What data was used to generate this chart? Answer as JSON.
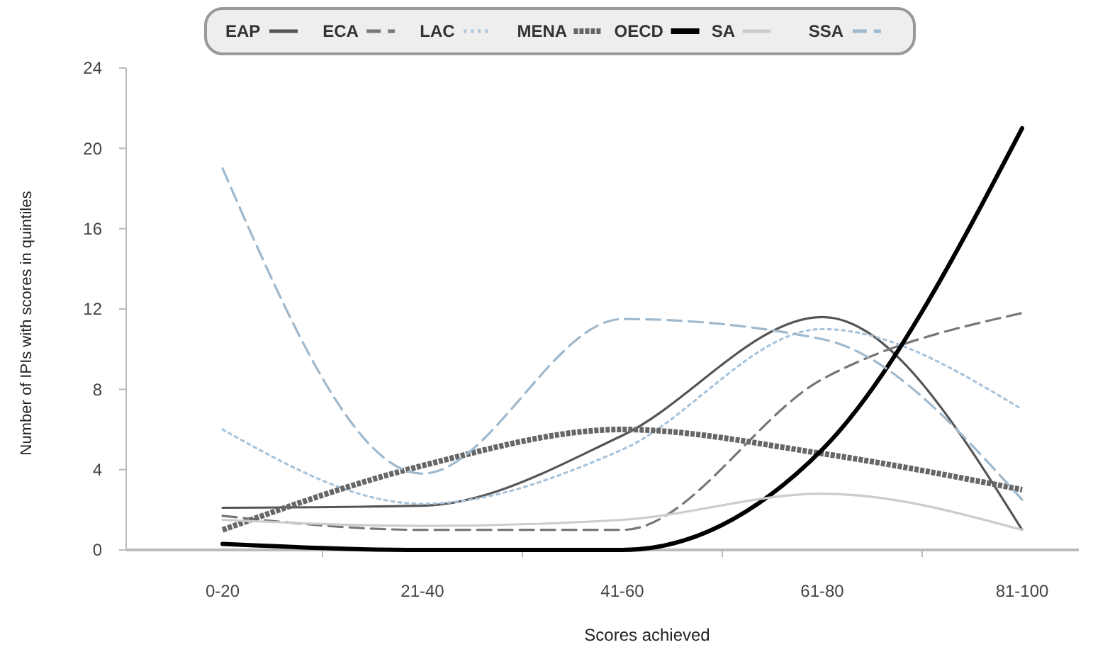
{
  "chart_data": {
    "type": "line",
    "xlabel": "Scores achieved",
    "ylabel": "Number of IPIs with scores in quintiles",
    "categories": [
      "0-20",
      "21-40",
      "41-60",
      "61-80",
      "81-100"
    ],
    "ylim": [
      0,
      24
    ],
    "yticks": [
      0,
      4,
      {
        "value": 8,
        "label": "8"
      },
      12,
      16,
      20,
      24
    ],
    "legend": "top",
    "marker": "none",
    "series": [
      {
        "name": "EAP",
        "color": "#555555",
        "line_style": "solid",
        "values": [
          2.1,
          2.2,
          5.7,
          11.6,
          1
        ]
      },
      {
        "name": "ECA",
        "color": "#777777",
        "line_style": "dashed",
        "values": [
          1.7,
          1,
          1,
          8.5,
          11.8
        ]
      },
      {
        "name": "LAC",
        "color": "#a8c4dc",
        "line_style": "dotted",
        "values": [
          6,
          2.3,
          5,
          11,
          7
        ]
      },
      {
        "name": "MENA",
        "color": "#666666",
        "line_style": "dashed",
        "values": [
          1,
          4.2,
          6,
          4.8,
          3
        ]
      },
      {
        "name": "OECD",
        "color": "#000000",
        "line_style": "solid",
        "values": [
          0.3,
          0,
          0,
          5,
          21
        ]
      },
      {
        "name": "SA",
        "color": "#cccccc",
        "line_style": "solid",
        "values": [
          1.5,
          1.2,
          1.5,
          2.8,
          1
        ]
      },
      {
        "name": "SSA",
        "color": "#9fb8cc",
        "line_style": "dashed",
        "values": [
          19,
          3.8,
          11.5,
          10.5,
          2.5
        ]
      }
    ]
  }
}
